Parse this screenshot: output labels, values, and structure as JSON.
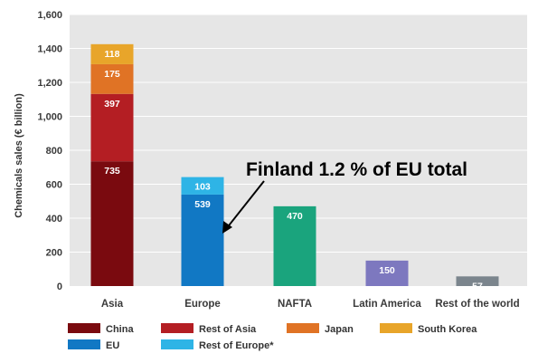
{
  "chart_data": {
    "type": "bar",
    "stacked": true,
    "ylabel": "Chemicals sales (€ billion)",
    "ylim": [
      0,
      1600
    ],
    "yticks": [
      0,
      200,
      400,
      600,
      800,
      1000,
      1200,
      1400,
      1600
    ],
    "ytick_labels": [
      "0",
      "200",
      "400",
      "600",
      "800",
      "1,000",
      "1,200",
      "1,400",
      "1,600"
    ],
    "grid": true,
    "categories": [
      "Asia",
      "Europe",
      "NAFTA",
      "Latin America",
      "Rest of the world"
    ],
    "series": [
      {
        "name": "China",
        "color": "#7a0a0f",
        "values": [
          735,
          null,
          null,
          null,
          null
        ]
      },
      {
        "name": "Rest of Asia",
        "color": "#b41e23",
        "values": [
          397,
          null,
          null,
          null,
          null
        ]
      },
      {
        "name": "Japan",
        "color": "#e07325",
        "values": [
          175,
          null,
          null,
          null,
          null
        ]
      },
      {
        "name": "South Korea",
        "color": "#e8a52a",
        "values": [
          118,
          null,
          null,
          null,
          null
        ]
      },
      {
        "name": "EU",
        "color": "#1178c4",
        "values": [
          null,
          539,
          null,
          null,
          null
        ]
      },
      {
        "name": "Rest of Europe*",
        "color": "#2eb4e6",
        "values": [
          null,
          103,
          null,
          null,
          null
        ]
      },
      {
        "name": "NAFTA",
        "color": "#1aa47d",
        "values": [
          null,
          null,
          470,
          null,
          null
        ]
      },
      {
        "name": "Latin America",
        "color": "#7d78bf",
        "values": [
          null,
          null,
          null,
          150,
          null
        ]
      },
      {
        "name": "Rest of the world",
        "color": "#7b858d",
        "values": [
          null,
          null,
          null,
          null,
          57
        ]
      }
    ],
    "legend": [
      "China",
      "Rest of Asia",
      "Japan",
      "South Korea",
      "EU",
      "Rest of Europe*"
    ],
    "legend_position": "bottom",
    "annotation": "Finland 1.2 % of EU total",
    "background_color": "#e6e6e6",
    "grid_color": "#ffffff"
  }
}
